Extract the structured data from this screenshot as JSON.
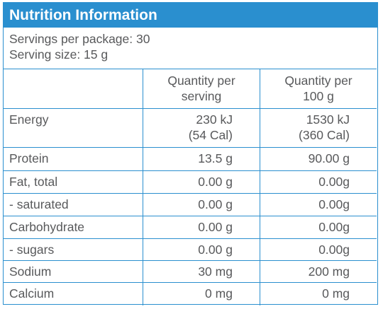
{
  "header": {
    "title": "Nutrition Information"
  },
  "servings": [
    "Servings per package: 30",
    "Serving size: 15 g"
  ],
  "table": {
    "columns": [
      [
        "Quantity per",
        "serving"
      ],
      [
        "Quantity per",
        "100 g"
      ]
    ],
    "rows": [
      [
        "Energy",
        [
          "230 kJ",
          "(54 Cal)"
        ],
        [
          "1530 kJ",
          "(360 Cal)"
        ]
      ],
      [
        "Protein",
        [
          "13.5 g"
        ],
        [
          "90.00 g"
        ]
      ],
      [
        "Fat, total",
        [
          "0.00 g"
        ],
        [
          "0.00g"
        ]
      ],
      [
        "- saturated",
        [
          "0.00 g"
        ],
        [
          "0.00g"
        ]
      ],
      [
        "Carbohydrate",
        [
          "0.00 g"
        ],
        [
          "0.00g"
        ]
      ],
      [
        "- sugars",
        [
          "0.00 g"
        ],
        [
          "0.00g"
        ]
      ],
      [
        "Sodium",
        [
          "30 mg"
        ],
        [
          "200 mg"
        ]
      ],
      [
        "Calcium",
        [
          "0 mg"
        ],
        [
          "0 mg"
        ]
      ]
    ]
  }
}
